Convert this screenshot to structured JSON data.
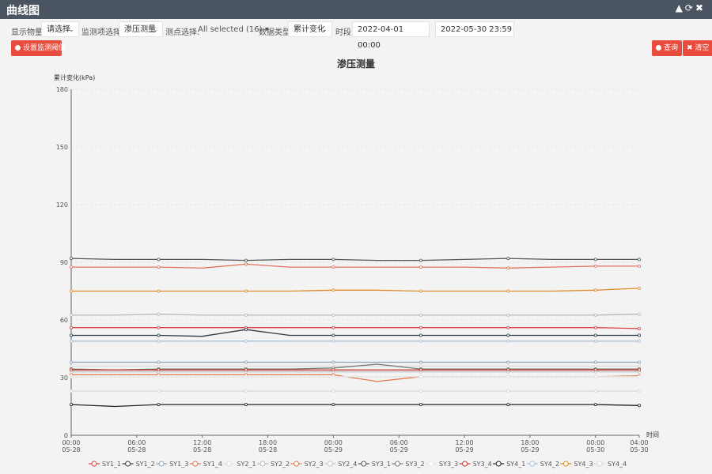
{
  "window": {
    "title": "曲线图",
    "controls": [
      "▲",
      "⟳",
      "✖"
    ]
  },
  "filters": {
    "display_label": "显示物量:",
    "display_value": "请选择",
    "monitor_label": "监测项选择:",
    "monitor_value": "渗压测量",
    "point_label": "测点选择:",
    "point_value": "All selected (16)",
    "datatype_label": "数据类型:",
    "datatype_value": "累计变化",
    "time_label": "时段:",
    "start_time": "2022-04-01 00:00",
    "end_time": "2022-05-30 23:59"
  },
  "buttons": {
    "left": "设置监测阈值",
    "query": "查询",
    "clear": "清空"
  },
  "chart_data": {
    "type": "line",
    "title": "渗压测量",
    "ylabel": "累计变化(kPa)",
    "xlabel": "时间",
    "ylim": [
      0,
      180
    ],
    "yticks": [
      "0",
      "30",
      "60",
      "90",
      "120",
      "150",
      "180"
    ],
    "xticks": [
      {
        "time": "00:00",
        "date": "05-28"
      },
      {
        "time": "06:00",
        "date": "05-28"
      },
      {
        "time": "12:00",
        "date": "05-28"
      },
      {
        "time": "18:00",
        "date": "05-28"
      },
      {
        "time": "00:00",
        "date": "05-29"
      },
      {
        "time": "06:00",
        "date": "05-29"
      },
      {
        "time": "12:00",
        "date": "05-29"
      },
      {
        "time": "18:00",
        "date": "05-29"
      },
      {
        "time": "00:00",
        "date": "05-30"
      },
      {
        "time": "04:00",
        "date": "05-30"
      }
    ],
    "x_hours": [
      0,
      4,
      8,
      12,
      16,
      20,
      24,
      28,
      32,
      36,
      40,
      44,
      48,
      52
    ],
    "series": [
      {
        "name": "SY1_1",
        "color": "#d94040",
        "values": [
          56,
          56,
          56,
          56,
          56,
          56,
          56,
          56,
          56,
          56,
          56,
          56,
          56,
          55.5
        ]
      },
      {
        "name": "SY1_2",
        "color": "#2e3a44",
        "values": [
          52,
          52,
          52,
          51.5,
          55,
          52,
          52,
          52,
          52,
          52,
          52,
          52,
          52,
          52
        ]
      },
      {
        "name": "SY1_3",
        "color": "#8fa3bd",
        "values": [
          38,
          38,
          38,
          38,
          38,
          38,
          38,
          38,
          38,
          38,
          38,
          38,
          38,
          38
        ]
      },
      {
        "name": "SY1_4",
        "color": "#e0735c",
        "values": [
          87.5,
          87.5,
          87.5,
          87,
          89,
          87.5,
          87.5,
          87.5,
          87.5,
          87.5,
          87,
          87.5,
          88,
          88
        ]
      },
      {
        "name": "SY2_1",
        "color": "#dcdcdc",
        "values": [
          36,
          36,
          36,
          36,
          36,
          36,
          36,
          36,
          36,
          36,
          36,
          36,
          36,
          36
        ]
      },
      {
        "name": "SY2_2",
        "color": "#b9b9b9",
        "values": [
          62.5,
          62.5,
          63,
          62.5,
          62.5,
          62.5,
          62.5,
          62.5,
          62.5,
          62.5,
          62.5,
          62.5,
          62.5,
          63
        ]
      },
      {
        "name": "SY2_3",
        "color": "#e37b4e",
        "values": [
          31.5,
          31.5,
          31.5,
          31.5,
          31.5,
          31.5,
          31.5,
          28,
          30.5,
          30.5,
          30.5,
          30.5,
          30.5,
          31
        ]
      },
      {
        "name": "SY2_4",
        "color": "#c6c6c6",
        "values": [
          33,
          33,
          33,
          33,
          33,
          33,
          33,
          33,
          33,
          33,
          33,
          33,
          33,
          33
        ]
      },
      {
        "name": "SY3_1",
        "color": "#555555",
        "values": [
          92,
          91.5,
          91.5,
          91.5,
          91,
          91.5,
          91.5,
          91,
          91,
          91.5,
          92,
          91.5,
          91.5,
          91.5
        ]
      },
      {
        "name": "SY3_2",
        "color": "#777777",
        "values": [
          34.5,
          34,
          34.5,
          34.5,
          34.5,
          34.5,
          35,
          37,
          34.5,
          34.5,
          34.5,
          34.5,
          34.5,
          34.5
        ]
      },
      {
        "name": "SY3_3",
        "color": "#e6e6e6",
        "values": [
          30.5,
          30.5,
          30.5,
          30.5,
          30.5,
          30.5,
          30.5,
          30.5,
          30.5,
          30.5,
          30.5,
          30.5,
          30.5,
          30.5
        ]
      },
      {
        "name": "SY3_4",
        "color": "#c0392b",
        "values": [
          34,
          34,
          34,
          34,
          34,
          34,
          34,
          34,
          34,
          34,
          34,
          34,
          34,
          34
        ]
      },
      {
        "name": "SY4_1",
        "color": "#222222",
        "values": [
          16,
          15,
          16,
          16,
          16,
          16,
          16,
          16,
          16,
          16,
          16,
          16,
          16,
          15.5
        ]
      },
      {
        "name": "SY4_2",
        "color": "#a9bfd6",
        "values": [
          49,
          49,
          49,
          49,
          49,
          49,
          49,
          49,
          49,
          49,
          49,
          49,
          49,
          49
        ]
      },
      {
        "name": "SY4_3",
        "color": "#e08c2a",
        "values": [
          75,
          75,
          75,
          75,
          75,
          75,
          75.5,
          75.5,
          75,
          75,
          75,
          75,
          75.5,
          76.5
        ]
      },
      {
        "name": "SY4_4",
        "color": "#d8d8d8",
        "values": [
          23,
          23,
          23,
          23,
          23,
          23,
          23,
          23,
          23,
          23,
          23,
          23,
          23,
          23
        ]
      }
    ]
  }
}
